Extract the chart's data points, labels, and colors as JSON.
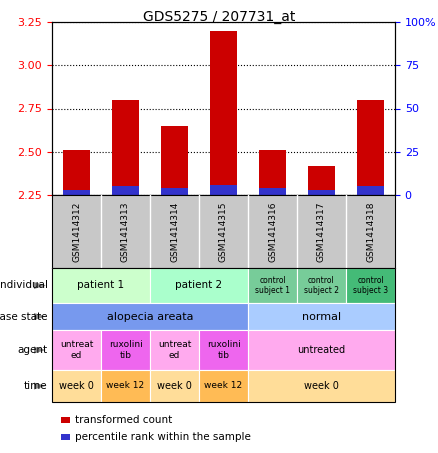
{
  "title": "GDS5275 / 207731_at",
  "samples": [
    "GSM1414312",
    "GSM1414313",
    "GSM1414314",
    "GSM1414315",
    "GSM1414316",
    "GSM1414317",
    "GSM1414318"
  ],
  "transformed_counts": [
    2.51,
    2.8,
    2.65,
    3.2,
    2.51,
    2.42,
    2.8
  ],
  "percentile_ranks": [
    3,
    5,
    4,
    6,
    4,
    3,
    5
  ],
  "bar_bottom": 2.25,
  "ylim": [
    2.25,
    3.25
  ],
  "yticks_left": [
    2.25,
    2.5,
    2.75,
    3.0,
    3.25
  ],
  "yticks_right": [
    0,
    25,
    50,
    75,
    100
  ],
  "bar_color_red": "#cc0000",
  "bar_color_blue": "#3333cc",
  "sample_bg": "#c8c8c8",
  "annotation_rows": [
    {
      "label": "individual",
      "cells": [
        {
          "text": "patient 1",
          "colspan": 2,
          "bg": "#ccffcc",
          "fontsize": 7.5
        },
        {
          "text": "patient 2",
          "colspan": 2,
          "bg": "#aaffcc",
          "fontsize": 7.5
        },
        {
          "text": "control\nsubject 1",
          "colspan": 1,
          "bg": "#77cc99",
          "fontsize": 5.5
        },
        {
          "text": "control\nsubject 2",
          "colspan": 1,
          "bg": "#77cc99",
          "fontsize": 5.5
        },
        {
          "text": "control\nsubject 3",
          "colspan": 1,
          "bg": "#44bb77",
          "fontsize": 5.5
        }
      ]
    },
    {
      "label": "disease state",
      "cells": [
        {
          "text": "alopecia areata",
          "colspan": 4,
          "bg": "#7799ee",
          "fontsize": 8
        },
        {
          "text": "normal",
          "colspan": 3,
          "bg": "#aaccff",
          "fontsize": 8
        }
      ]
    },
    {
      "label": "agent",
      "cells": [
        {
          "text": "untreat\ned",
          "colspan": 1,
          "bg": "#ffaaee",
          "fontsize": 6.5
        },
        {
          "text": "ruxolini\ntib",
          "colspan": 1,
          "bg": "#ee66ee",
          "fontsize": 6.5
        },
        {
          "text": "untreat\ned",
          "colspan": 1,
          "bg": "#ffaaee",
          "fontsize": 6.5
        },
        {
          "text": "ruxolini\ntib",
          "colspan": 1,
          "bg": "#ee66ee",
          "fontsize": 6.5
        },
        {
          "text": "untreated",
          "colspan": 3,
          "bg": "#ffaaee",
          "fontsize": 7
        }
      ]
    },
    {
      "label": "time",
      "cells": [
        {
          "text": "week 0",
          "colspan": 1,
          "bg": "#ffdd99",
          "fontsize": 7
        },
        {
          "text": "week 12",
          "colspan": 1,
          "bg": "#ffbb55",
          "fontsize": 6.5
        },
        {
          "text": "week 0",
          "colspan": 1,
          "bg": "#ffdd99",
          "fontsize": 7
        },
        {
          "text": "week 12",
          "colspan": 1,
          "bg": "#ffbb55",
          "fontsize": 6.5
        },
        {
          "text": "week 0",
          "colspan": 3,
          "bg": "#ffdd99",
          "fontsize": 7
        }
      ]
    }
  ],
  "row_labels": [
    "individual",
    "disease state",
    "agent",
    "time"
  ],
  "legend_red_label": "transformed count",
  "legend_blue_label": "percentile rank within the sample"
}
